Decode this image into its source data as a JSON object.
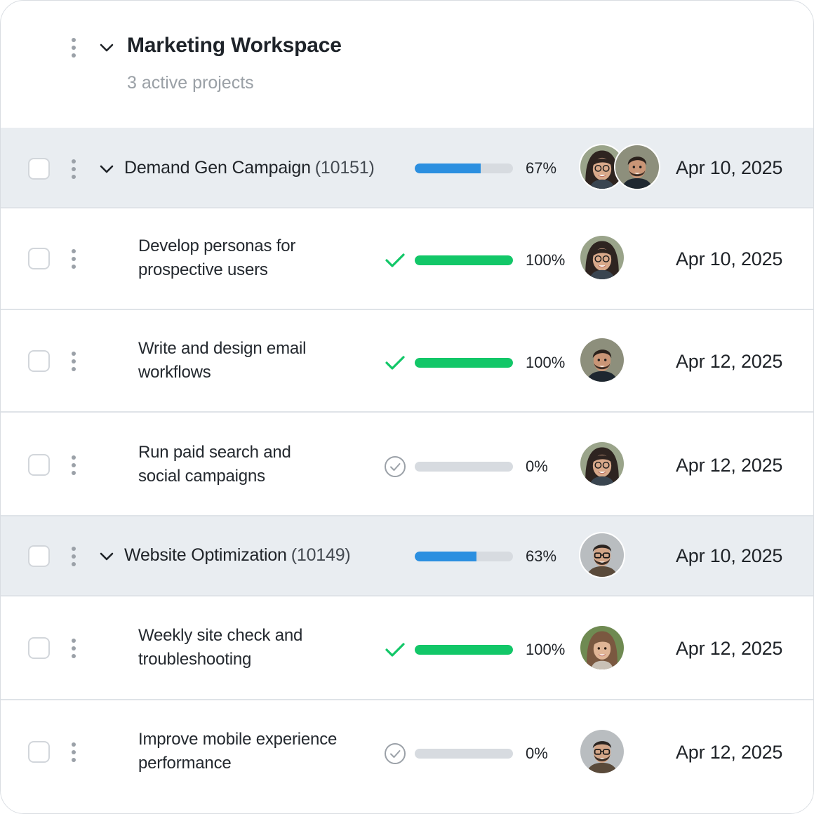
{
  "workspace": {
    "title": "Marketing Workspace",
    "subtitle": "3 active projects"
  },
  "colors": {
    "progress_blue": "#2b8fe0",
    "progress_green": "#12c768",
    "track": "#d7dbe0",
    "group_bg": "#e9edf1"
  },
  "groups": [
    {
      "name": "Demand Gen Campaign",
      "code": "(10151)",
      "progress_percent": 67,
      "progress_label": "67%",
      "due": "Apr 10, 2025",
      "assignees": [
        "woman-glasses",
        "man-beard"
      ],
      "tasks": [
        {
          "line1": "Develop personas for",
          "line2": "prospective users",
          "status": "done",
          "progress_percent": 100,
          "progress_label": "100%",
          "assignee": "woman-glasses",
          "due": "Apr 10, 2025"
        },
        {
          "line1": "Write and design email",
          "line2": "workflows",
          "status": "done",
          "progress_percent": 100,
          "progress_label": "100%",
          "assignee": "man-beard",
          "due": "Apr 12, 2025"
        },
        {
          "line1": "Run paid search and",
          "line2": "social campaigns",
          "status": "pending",
          "progress_percent": 0,
          "progress_label": "0%",
          "assignee": "woman-glasses",
          "due": "Apr 12, 2025"
        }
      ]
    },
    {
      "name": "Website Optimization",
      "code": "(10149)",
      "progress_percent": 63,
      "progress_label": "63%",
      "due": "Apr 10, 2025",
      "assignees": [
        "man-glasses"
      ],
      "tasks": [
        {
          "line1": "Weekly site check and",
          "line2": "troubleshooting",
          "status": "done",
          "progress_percent": 100,
          "progress_label": "100%",
          "assignee": "woman-long-hair",
          "due": "Apr 12, 2025"
        },
        {
          "line1": "Improve mobile experience",
          "line2": "performance",
          "status": "pending",
          "progress_percent": 0,
          "progress_label": "0%",
          "assignee": "man-glasses",
          "due": "Apr 12, 2025"
        }
      ]
    }
  ]
}
